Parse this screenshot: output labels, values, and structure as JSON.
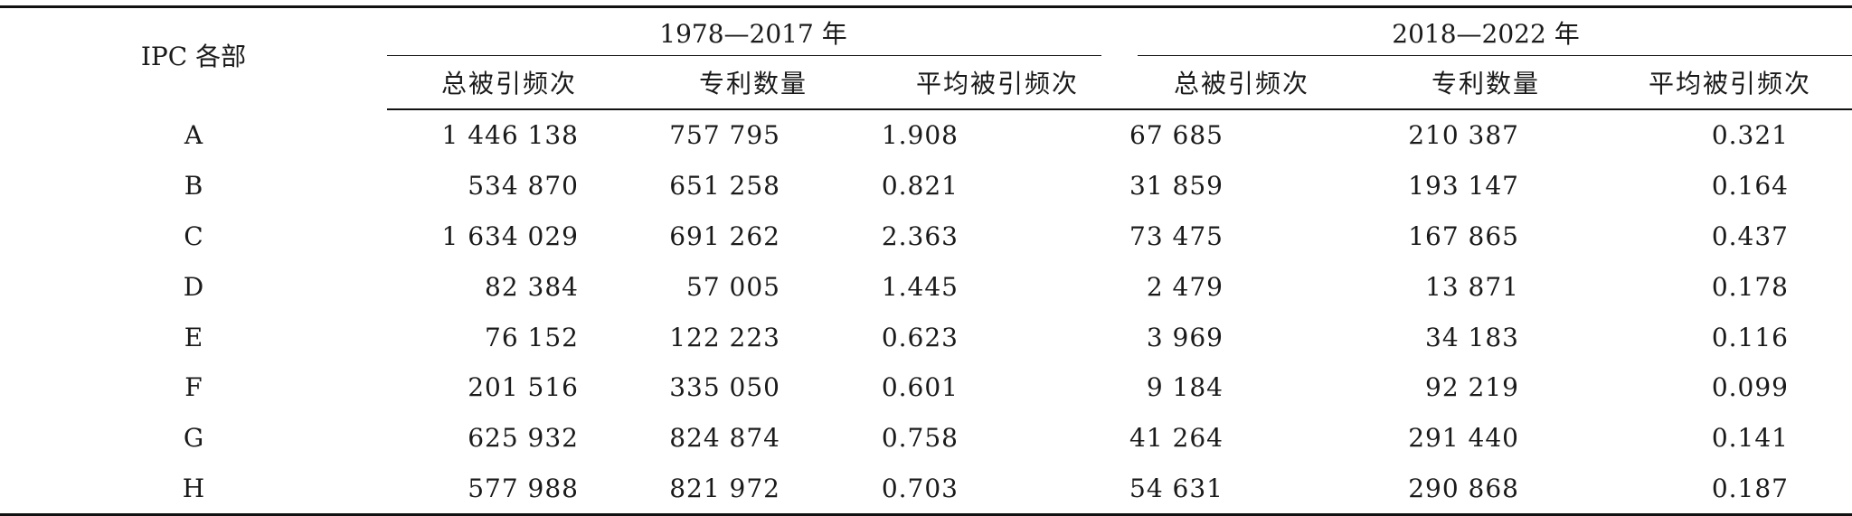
{
  "header": {
    "ipc_label": "IPC 各部",
    "period_1": "1978—2017 年",
    "period_2": "2018—2022 年",
    "columns": [
      "总被引频次",
      "专利数量",
      "平均被引频次",
      "总被引频次",
      "专利数量",
      "平均被引频次"
    ]
  },
  "rows": [
    {
      "ipc": "A",
      "p1_citations": "1 446 138",
      "p1_patents": "757 795",
      "p1_avg": "1.908",
      "p2_citations": "67 685",
      "p2_patents": "210 387",
      "p2_avg": "0.321"
    },
    {
      "ipc": "B",
      "p1_citations": "534 870",
      "p1_patents": "651 258",
      "p1_avg": "0.821",
      "p2_citations": "31 859",
      "p2_patents": "193 147",
      "p2_avg": "0.164"
    },
    {
      "ipc": "C",
      "p1_citations": "1 634 029",
      "p1_patents": "691 262",
      "p1_avg": "2.363",
      "p2_citations": "73 475",
      "p2_patents": "167 865",
      "p2_avg": "0.437"
    },
    {
      "ipc": "D",
      "p1_citations": "82 384",
      "p1_patents": "57 005",
      "p1_avg": "1.445",
      "p2_citations": "2 479",
      "p2_patents": "13 871",
      "p2_avg": "0.178"
    },
    {
      "ipc": "E",
      "p1_citations": "76 152",
      "p1_patents": "122 223",
      "p1_avg": "0.623",
      "p2_citations": "3 969",
      "p2_patents": "34 183",
      "p2_avg": "0.116"
    },
    {
      "ipc": "F",
      "p1_citations": "201 516",
      "p1_patents": "335 050",
      "p1_avg": "0.601",
      "p2_citations": "9 184",
      "p2_patents": "92 219",
      "p2_avg": "0.099"
    },
    {
      "ipc": "G",
      "p1_citations": "625 932",
      "p1_patents": "824 874",
      "p1_avg": "0.758",
      "p2_citations": "41 264",
      "p2_patents": "291 440",
      "p2_avg": "0.141"
    },
    {
      "ipc": "H",
      "p1_citations": "577 988",
      "p1_patents": "821 972",
      "p1_avg": "0.703",
      "p2_citations": "54 631",
      "p2_patents": "290 868",
      "p2_avg": "0.187"
    }
  ]
}
